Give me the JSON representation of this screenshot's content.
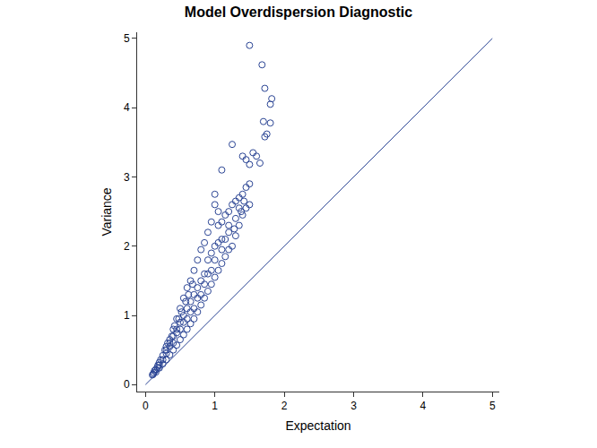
{
  "chart_data": {
    "type": "scatter",
    "title": "Model Overdispersion Diagnostic",
    "x_label": "Expectation",
    "y_label": "Variance",
    "xlim": [
      -0.12,
      5.1
    ],
    "ylim": [
      -0.1,
      5.09
    ],
    "xticks": [
      0,
      1,
      2,
      3,
      4,
      5
    ],
    "yticks": [
      0,
      1,
      2,
      3,
      4,
      5
    ],
    "grid": false,
    "series": [
      {
        "type": "scatter",
        "marker": "circle-open",
        "color": "#2a4494",
        "x": [
          1.5,
          1.68,
          1.72,
          1.82,
          1.8,
          1.7,
          1.8,
          1.75,
          1.72,
          1.25,
          1.1,
          1.4,
          1.55,
          1.6,
          1.65,
          1.45,
          1.5,
          1.45,
          1.5,
          1.4,
          1.35,
          1.3,
          1.25,
          1.2,
          1.15,
          1.1,
          1.05,
          1.0,
          1.0,
          1.05,
          0.95,
          0.9,
          0.85,
          0.8,
          0.75,
          0.7,
          0.65,
          0.6,
          0.55,
          0.5,
          0.45,
          0.4,
          0.35,
          0.3,
          0.25,
          0.2,
          0.15,
          0.1,
          1.0,
          1.1,
          1.2,
          1.3,
          1.35,
          1.4,
          1.5,
          1.45,
          1.25,
          1.15,
          1.05,
          0.95,
          0.9,
          0.85,
          0.8,
          0.75,
          0.7,
          0.65,
          0.6,
          0.55,
          0.5,
          0.45,
          0.4,
          0.35,
          0.3,
          0.25,
          0.2,
          0.15,
          0.9,
          0.85,
          0.8,
          0.75,
          0.7,
          0.65,
          0.6,
          0.55,
          0.5,
          0.45,
          0.4,
          0.35,
          0.3,
          0.25,
          0.2,
          0.7,
          0.6,
          0.5,
          0.4,
          1.0,
          1.1,
          1.2,
          1.2,
          1.3,
          0.95,
          1.05,
          0.9,
          0.8,
          0.68,
          0.62,
          0.58,
          0.52,
          0.48,
          0.42,
          0.38,
          0.32,
          0.28,
          0.22,
          0.18,
          0.12,
          0.11,
          0.13,
          0.17,
          0.3,
          0.35,
          0.45,
          0.55,
          0.65,
          0.75,
          0.85,
          0.95,
          1.0,
          1.1,
          1.15,
          1.28,
          1.38,
          1.42,
          1.35
        ],
        "values": [
          4.9,
          4.62,
          4.28,
          4.13,
          4.05,
          3.8,
          3.78,
          3.62,
          3.58,
          3.47,
          3.1,
          3.3,
          3.35,
          3.3,
          3.2,
          3.25,
          3.18,
          2.85,
          2.9,
          2.75,
          2.7,
          2.65,
          2.6,
          2.5,
          2.45,
          2.35,
          2.3,
          2.75,
          2.6,
          2.5,
          2.35,
          2.2,
          2.05,
          1.95,
          1.8,
          1.65,
          1.5,
          1.4,
          1.25,
          1.1,
          0.95,
          0.8,
          0.65,
          0.55,
          0.42,
          0.32,
          0.22,
          0.14,
          1.55,
          1.75,
          1.95,
          2.15,
          2.3,
          2.45,
          2.6,
          2.55,
          2.0,
          1.85,
          1.65,
          1.45,
          1.35,
          1.25,
          1.15,
          1.05,
          0.95,
          0.88,
          0.8,
          0.72,
          0.65,
          0.57,
          0.5,
          0.43,
          0.36,
          0.3,
          0.24,
          0.18,
          1.8,
          1.6,
          1.5,
          1.4,
          1.3,
          1.2,
          1.1,
          1.0,
          0.9,
          0.8,
          0.7,
          0.55,
          0.45,
          0.36,
          0.28,
          1.1,
          0.95,
          0.8,
          0.6,
          2.0,
          2.1,
          2.2,
          2.3,
          2.4,
          1.9,
          2.05,
          1.6,
          1.3,
          1.45,
          1.3,
          1.2,
          1.05,
          0.95,
          0.85,
          0.7,
          0.6,
          0.5,
          0.36,
          0.28,
          0.17,
          0.15,
          0.2,
          0.25,
          0.5,
          0.6,
          0.75,
          0.9,
          1.05,
          1.25,
          1.45,
          1.65,
          1.8,
          1.95,
          2.1,
          2.25,
          2.5,
          2.65,
          2.55
        ]
      },
      {
        "type": "line",
        "line_style": "solid",
        "color": "#2a4494",
        "x": [
          0,
          5
        ],
        "values": [
          0,
          5
        ]
      }
    ]
  }
}
